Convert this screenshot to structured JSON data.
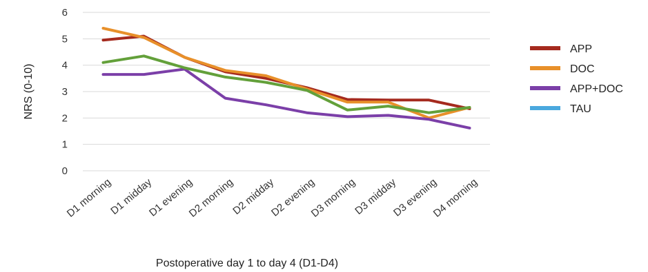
{
  "chart_data": {
    "type": "line",
    "title": "",
    "xlabel": "Postoperative day 1 to day 4 (D1-D4)",
    "ylabel": "NRS (0-10)",
    "ylim": [
      0,
      6
    ],
    "yticks": [
      0,
      1,
      2,
      3,
      4,
      5,
      6
    ],
    "grid": true,
    "legend_position": "right",
    "categories": [
      "D1 morning",
      "D1 midday",
      "D1 evening",
      "D2 morning",
      "D2 midday",
      "D2 evening",
      "D3 morning",
      "D3 midday",
      "D3 evening",
      "D4 morning"
    ],
    "series": [
      {
        "name": "APP",
        "color": "#a52a1e",
        "values": [
          4.95,
          5.1,
          4.3,
          3.75,
          3.5,
          3.15,
          2.7,
          2.68,
          2.68,
          2.35
        ]
      },
      {
        "name": "DOC",
        "color": "#e8902a",
        "values": [
          5.4,
          5.05,
          4.3,
          3.8,
          3.6,
          3.1,
          2.6,
          2.6,
          2.0,
          2.4
        ]
      },
      {
        "name": "APP+DOC",
        "color": "#7b3fa8",
        "values": [
          3.65,
          3.65,
          3.85,
          2.75,
          2.5,
          2.2,
          2.05,
          2.1,
          1.95,
          1.62
        ]
      },
      {
        "name": "TAU",
        "color": "#4aa8de",
        "values": [
          null,
          null,
          null,
          null,
          null,
          null,
          null,
          null,
          null,
          null
        ]
      },
      {
        "name": "",
        "color": "#63a03a",
        "values": [
          4.1,
          4.35,
          3.9,
          3.55,
          3.35,
          3.05,
          2.3,
          2.45,
          2.2,
          2.4
        ]
      }
    ]
  }
}
